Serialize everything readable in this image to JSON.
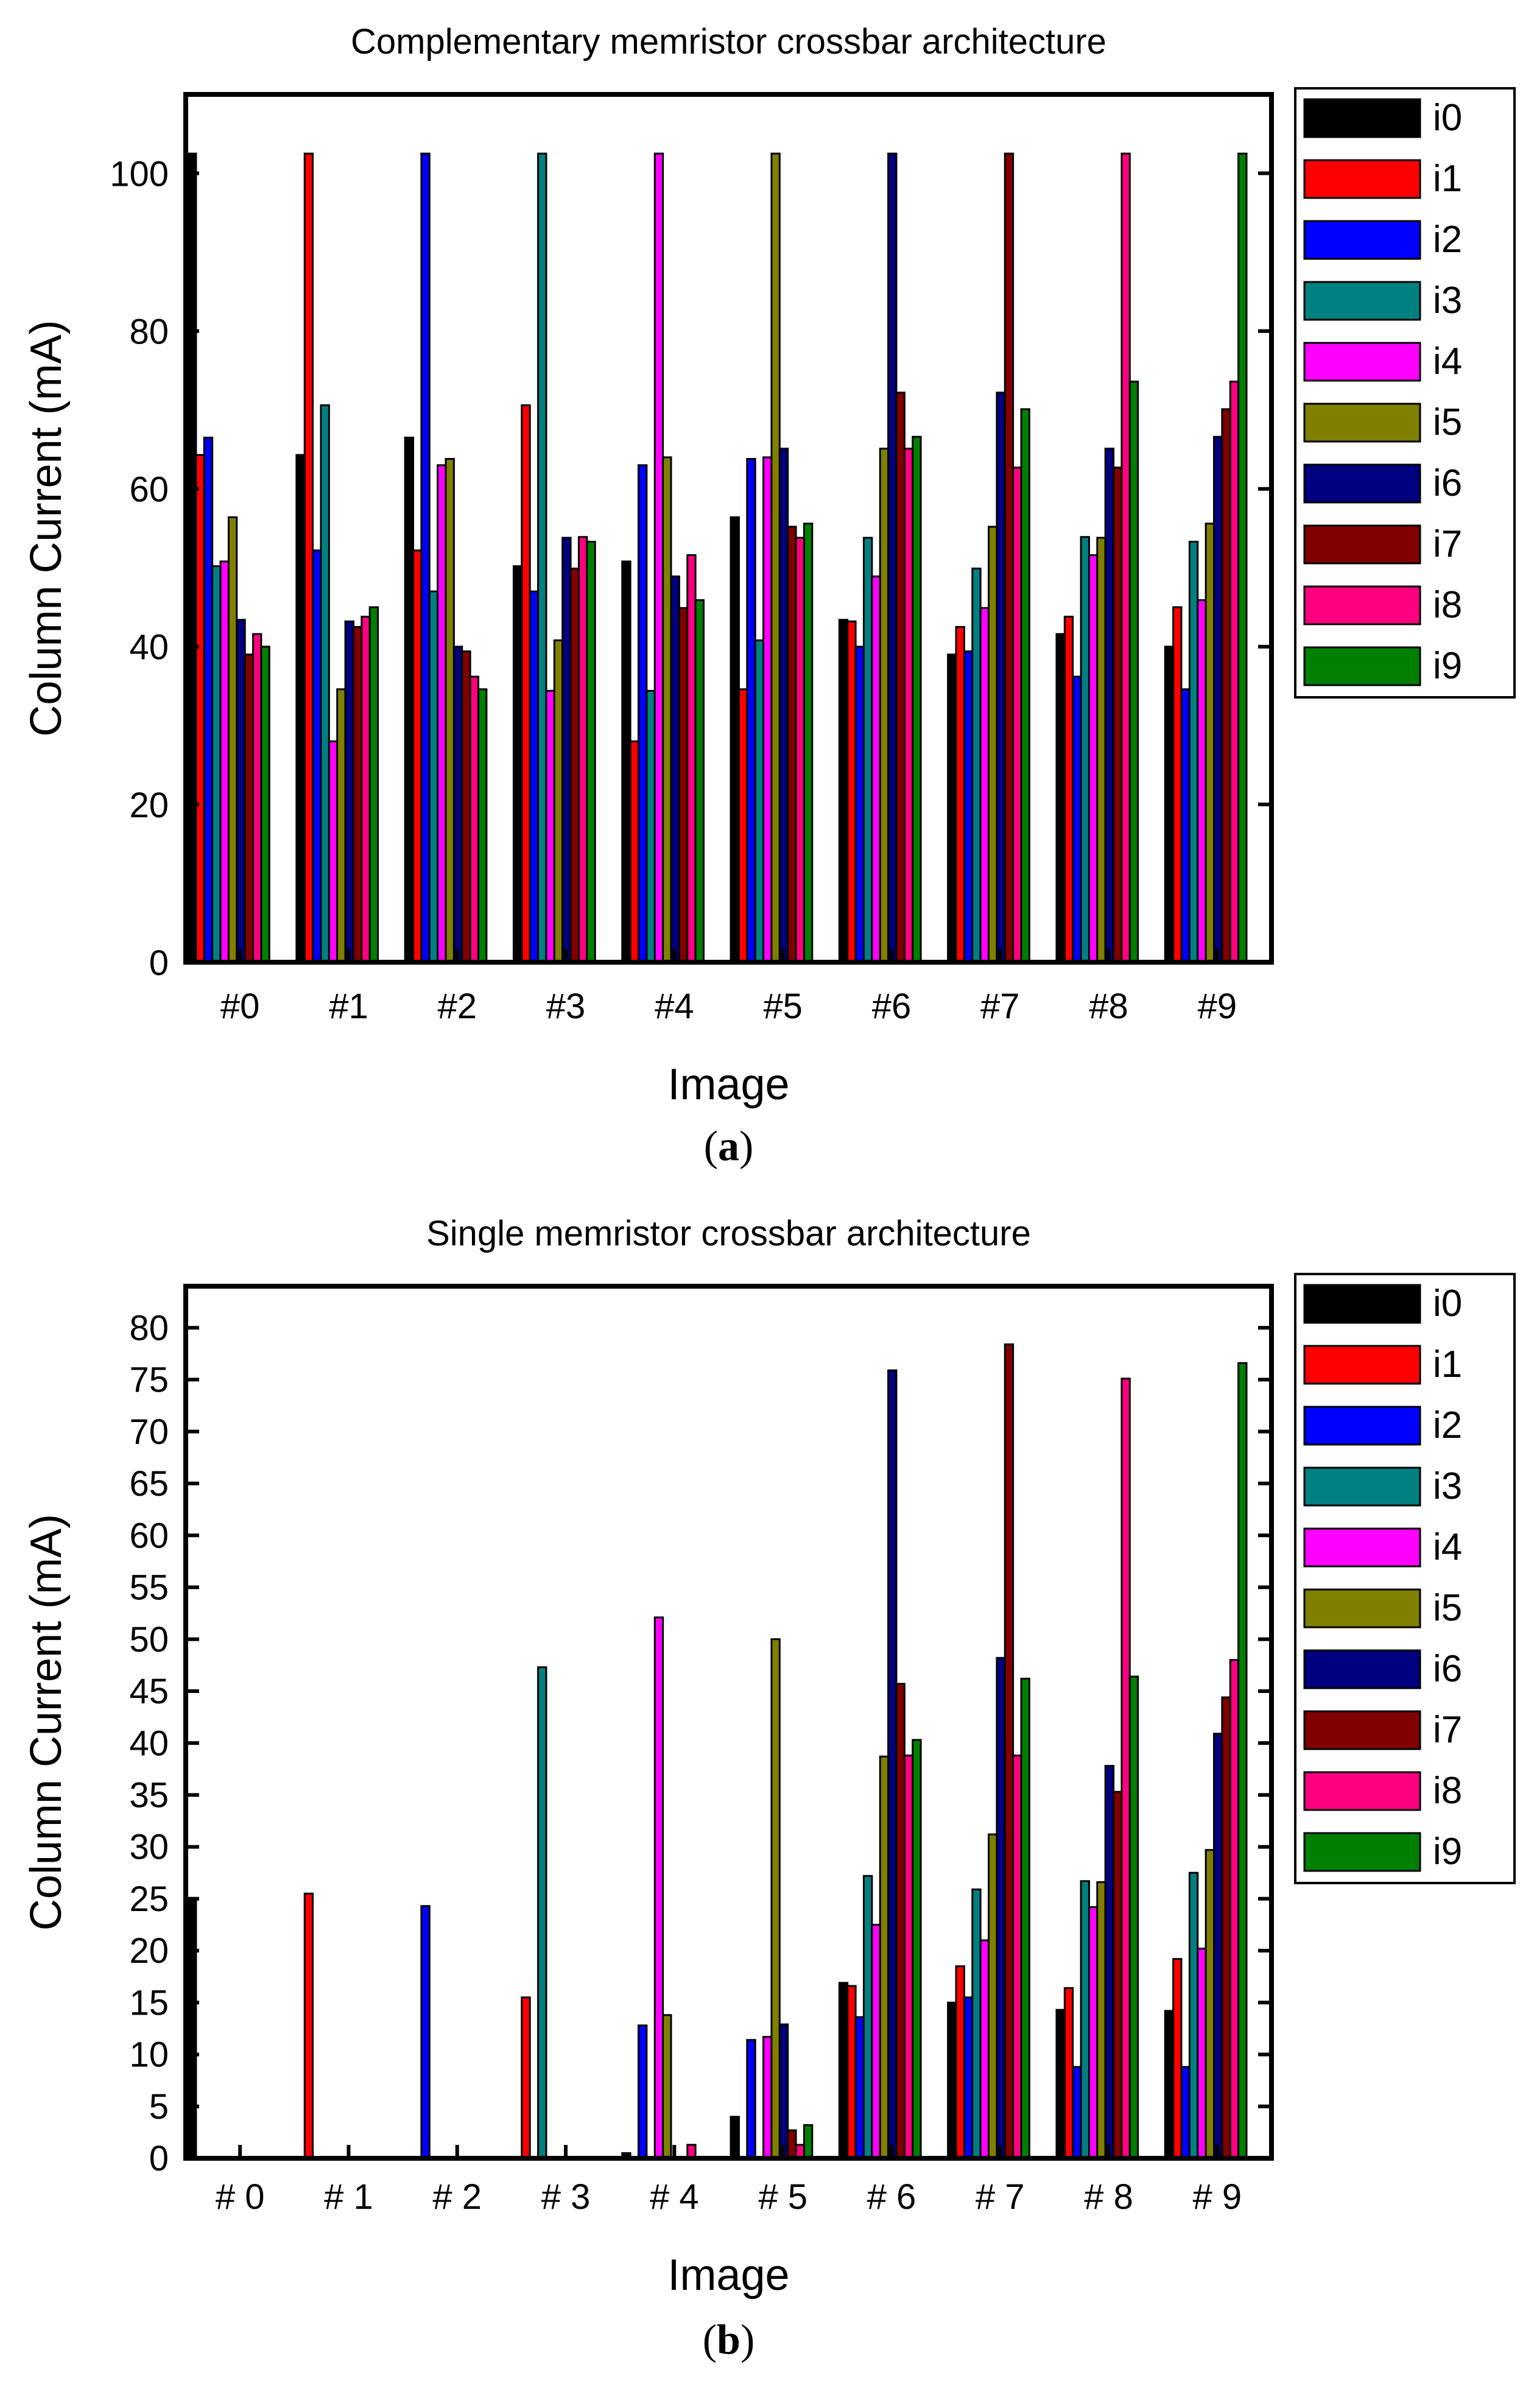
{
  "colors": {
    "i0": "#000000",
    "i1": "#ff0000",
    "i2": "#0000ff",
    "i3": "#008080",
    "i4": "#ff00ff",
    "i5": "#808000",
    "i6": "#000080",
    "i7": "#800000",
    "i8": "#ff0080",
    "i9": "#008000"
  },
  "chart_data": [
    {
      "type": "bar",
      "panel_label": "(a)",
      "panel_letter": "a",
      "title": "Complementary memristor crossbar architecture",
      "xlabel": "Image",
      "ylabel": "Column Current (mA)",
      "ylim": [
        0,
        110
      ],
      "yticks": [
        0,
        20,
        40,
        60,
        80,
        100
      ],
      "legend_position": "right",
      "categories": [
        "#0",
        "#1",
        "#2",
        "#3",
        "#4",
        "#5",
        "#6",
        "#7",
        "#8",
        "#9"
      ],
      "series": [
        {
          "name": "i0",
          "values": [
            102.5,
            64.3,
            66.5,
            50.2,
            50.8,
            56.4,
            43.4,
            39.0,
            41.6,
            40.0
          ]
        },
        {
          "name": "i1",
          "values": [
            64.3,
            102.5,
            52.2,
            70.6,
            28.0,
            34.6,
            43.2,
            42.5,
            43.8,
            45.0
          ]
        },
        {
          "name": "i2",
          "values": [
            66.5,
            52.2,
            102.5,
            47.0,
            63.0,
            63.8,
            40.0,
            39.4,
            36.2,
            34.6
          ]
        },
        {
          "name": "i3",
          "values": [
            50.2,
            70.6,
            47.0,
            102.5,
            34.4,
            40.8,
            53.8,
            49.9,
            53.9,
            53.3
          ]
        },
        {
          "name": "i4",
          "values": [
            50.8,
            28.0,
            63.0,
            34.4,
            102.5,
            64.0,
            48.9,
            44.9,
            51.6,
            45.9
          ]
        },
        {
          "name": "i5",
          "values": [
            56.4,
            34.6,
            63.8,
            40.8,
            64.0,
            102.5,
            65.1,
            55.2,
            53.8,
            55.6
          ]
        },
        {
          "name": "i6",
          "values": [
            43.4,
            43.2,
            40.0,
            53.8,
            48.9,
            65.1,
            102.5,
            72.2,
            65.1,
            66.6
          ]
        },
        {
          "name": "i7",
          "values": [
            39.0,
            42.5,
            39.4,
            49.9,
            44.9,
            55.2,
            72.2,
            102.5,
            62.7,
            70.1
          ]
        },
        {
          "name": "i8",
          "values": [
            41.6,
            43.8,
            36.2,
            53.9,
            51.6,
            53.8,
            65.1,
            62.7,
            102.5,
            73.6
          ]
        },
        {
          "name": "i9",
          "values": [
            40.0,
            45.0,
            34.6,
            53.3,
            45.9,
            55.6,
            66.6,
            70.1,
            73.6,
            102.5
          ]
        }
      ]
    },
    {
      "type": "bar",
      "panel_label": "(b)",
      "panel_letter": "b",
      "title": "Single memristor crossbar architecture",
      "xlabel": "Image",
      "ylabel": "Column Current (mA)",
      "ylim": [
        0,
        84
      ],
      "yticks": [
        0,
        5,
        10,
        15,
        20,
        25,
        30,
        35,
        40,
        45,
        50,
        55,
        60,
        65,
        70,
        75,
        80
      ],
      "legend_position": "right",
      "categories": [
        "# 0",
        "# 1",
        "# 2",
        "# 3",
        "# 4",
        "# 5",
        "# 6",
        "# 7",
        "# 8",
        "# 9"
      ],
      "series": [
        {
          "name": "i0",
          "values": [
            25.0,
            0,
            0,
            0,
            0.5,
            4.0,
            16.9,
            15.0,
            14.3,
            14.2
          ]
        },
        {
          "name": "i1",
          "values": [
            0,
            25.5,
            0,
            15.5,
            0,
            0,
            16.6,
            18.5,
            16.4,
            19.2
          ]
        },
        {
          "name": "i2",
          "values": [
            0,
            0,
            24.3,
            0,
            12.8,
            11.4,
            13.6,
            15.5,
            8.8,
            8.8
          ]
        },
        {
          "name": "i3",
          "values": [
            0,
            0,
            0,
            47.3,
            0,
            0,
            27.2,
            25.9,
            26.7,
            27.5
          ]
        },
        {
          "name": "i4",
          "values": [
            0,
            0,
            0,
            0,
            52.1,
            11.7,
            22.5,
            21.0,
            24.2,
            20.2
          ]
        },
        {
          "name": "i5",
          "values": [
            0,
            0,
            0,
            0,
            13.8,
            50.0,
            38.7,
            31.2,
            26.6,
            29.7
          ]
        },
        {
          "name": "i6",
          "values": [
            0,
            0,
            0,
            0,
            0,
            12.9,
            75.9,
            48.2,
            37.8,
            40.9
          ]
        },
        {
          "name": "i7",
          "values": [
            0,
            0,
            0,
            0,
            0,
            2.7,
            45.7,
            78.4,
            35.3,
            44.4
          ]
        },
        {
          "name": "i8",
          "values": [
            0,
            0,
            0,
            0,
            1.3,
            1.3,
            38.8,
            38.8,
            75.1,
            48.0
          ]
        },
        {
          "name": "i9",
          "values": [
            0,
            0,
            0,
            0,
            0,
            3.2,
            40.3,
            46.2,
            46.4,
            76.6
          ]
        }
      ]
    }
  ]
}
